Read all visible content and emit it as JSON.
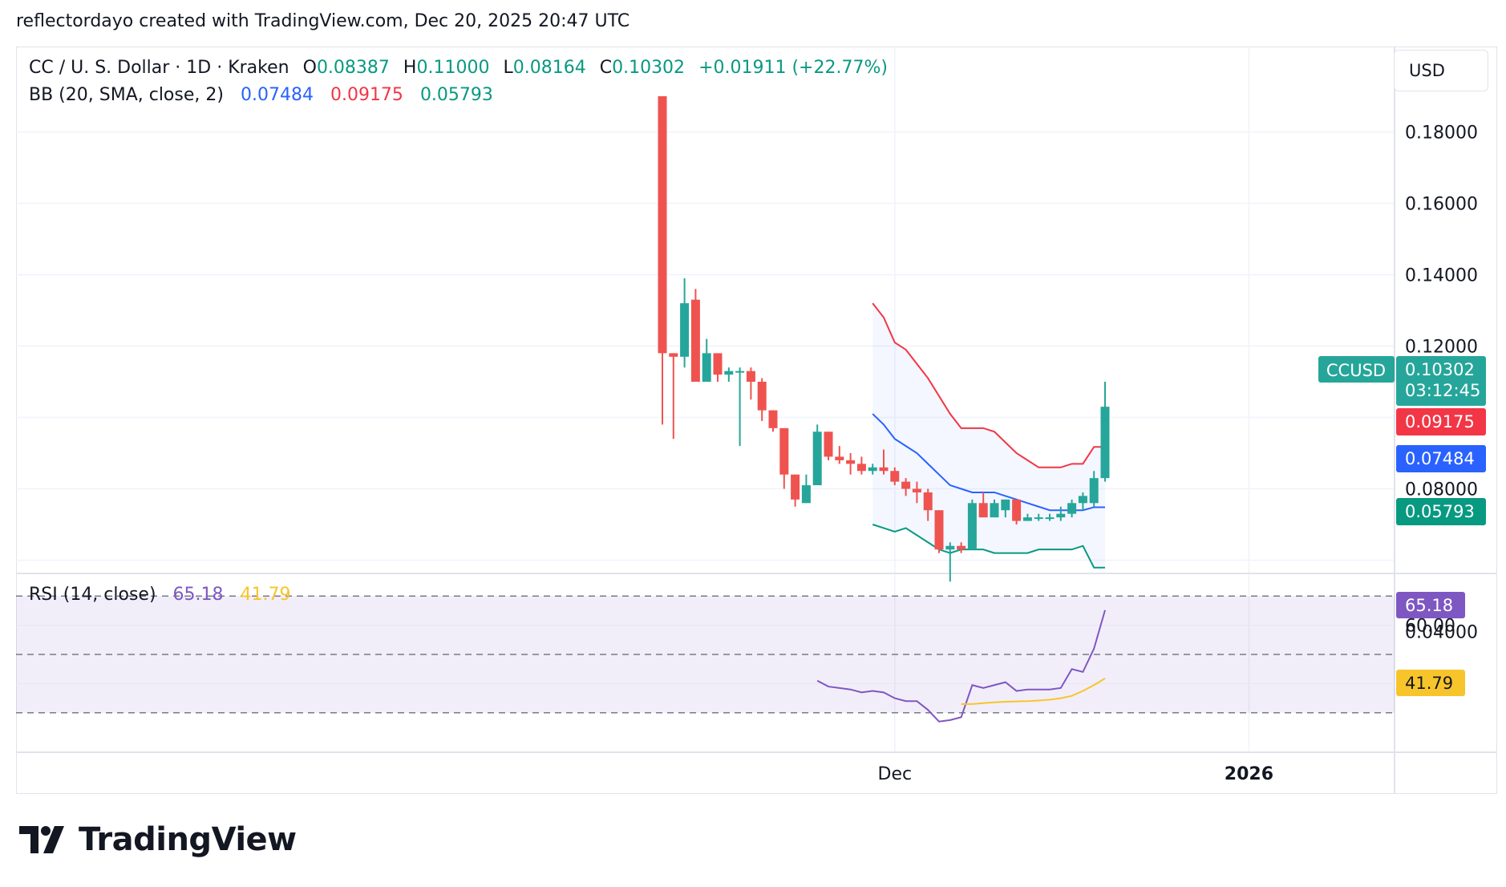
{
  "credit": "reflectordayo created with TradingView.com, Dec 20, 2025 20:47 UTC",
  "legend": {
    "symbol": "CC / U. S. Dollar · 1D · Kraken",
    "o_label": "O",
    "o_value": "0.08387",
    "h_label": "H",
    "h_value": "0.11000",
    "l_label": "L",
    "l_value": "0.08164",
    "c_label": "C",
    "c_value": "0.10302",
    "change": "+0.01911 (+22.77%)",
    "bb_label": "BB (20, SMA, close, 2)",
    "bb_basis": "0.07484",
    "bb_upper": "0.09175",
    "bb_lower": "0.05793",
    "rsi_label": "RSI (14, close)",
    "rsi_value": "65.18",
    "rsi_ma_value": "41.79"
  },
  "currency": "USD",
  "brand": "TradingView",
  "colors": {
    "up": "#26a69a",
    "down": "#ef5350",
    "bb_upper": "#f23645",
    "bb_basis": "#2962ff",
    "bb_lower": "#089981",
    "rsi": "#7e57c2",
    "rsi_ma": "#f7c52b",
    "price_badge": "#26a69a"
  },
  "chart_data": [
    {
      "type": "candlestick",
      "symbol": "CCUSD",
      "ylim": [
        0.04,
        0.19
      ],
      "y_ticks": [
        "0.18000",
        "0.16000",
        "0.14000",
        "0.12000",
        "0.08000",
        "0.04000"
      ],
      "x_ticks": [
        "Dec",
        "2026"
      ],
      "first_candle_index": 0,
      "dec_index": 21,
      "year_index": 53,
      "candles": [
        [
          0.19,
          0.19,
          0.098,
          0.118
        ],
        [
          0.118,
          0.118,
          0.094,
          0.117
        ],
        [
          0.117,
          0.139,
          0.114,
          0.132
        ],
        [
          0.133,
          0.136,
          0.11,
          0.11
        ],
        [
          0.11,
          0.122,
          0.11,
          0.118
        ],
        [
          0.118,
          0.118,
          0.11,
          0.112
        ],
        [
          0.112,
          0.114,
          0.11,
          0.113
        ],
        [
          0.113,
          0.114,
          0.092,
          0.113
        ],
        [
          0.113,
          0.114,
          0.105,
          0.11
        ],
        [
          0.11,
          0.111,
          0.099,
          0.102
        ],
        [
          0.102,
          0.102,
          0.096,
          0.097
        ],
        [
          0.097,
          0.097,
          0.08,
          0.084
        ],
        [
          0.084,
          0.084,
          0.075,
          0.077
        ],
        [
          0.076,
          0.084,
          0.076,
          0.081
        ],
        [
          0.081,
          0.098,
          0.081,
          0.096
        ],
        [
          0.096,
          0.096,
          0.088,
          0.089
        ],
        [
          0.089,
          0.092,
          0.087,
          0.088
        ],
        [
          0.088,
          0.09,
          0.084,
          0.087
        ],
        [
          0.087,
          0.089,
          0.084,
          0.085
        ],
        [
          0.085,
          0.087,
          0.084,
          0.086
        ],
        [
          0.086,
          0.091,
          0.084,
          0.085
        ],
        [
          0.085,
          0.086,
          0.081,
          0.082
        ],
        [
          0.082,
          0.083,
          0.078,
          0.08
        ],
        [
          0.08,
          0.082,
          0.076,
          0.079
        ],
        [
          0.079,
          0.08,
          0.071,
          0.074
        ],
        [
          0.074,
          0.074,
          0.062,
          0.063
        ],
        [
          0.063,
          0.065,
          0.054,
          0.064
        ],
        [
          0.064,
          0.065,
          0.062,
          0.063
        ],
        [
          0.063,
          0.077,
          0.063,
          0.076
        ],
        [
          0.076,
          0.079,
          0.072,
          0.072
        ],
        [
          0.072,
          0.077,
          0.072,
          0.076
        ],
        [
          0.074,
          0.077,
          0.072,
          0.077
        ],
        [
          0.077,
          0.077,
          0.07,
          0.071
        ],
        [
          0.071,
          0.073,
          0.071,
          0.072
        ],
        [
          0.072,
          0.073,
          0.071,
          0.072
        ],
        [
          0.072,
          0.073,
          0.071,
          0.072
        ],
        [
          0.072,
          0.075,
          0.071,
          0.073
        ],
        [
          0.073,
          0.077,
          0.072,
          0.076
        ],
        [
          0.076,
          0.079,
          0.074,
          0.078
        ],
        [
          0.076,
          0.085,
          0.075,
          0.083
        ],
        [
          0.083,
          0.11,
          0.082,
          0.103
        ]
      ],
      "bb_start_index": 19,
      "bb_upper": [
        0.132,
        0.128,
        0.121,
        0.119,
        0.115,
        0.111,
        0.106,
        0.101,
        0.097,
        0.097,
        0.097,
        0.096,
        0.093,
        0.09,
        0.088,
        0.086,
        0.086,
        0.086,
        0.087,
        0.087,
        0.09175,
        0.09175
      ],
      "bb_basis": [
        0.101,
        0.098,
        0.094,
        0.092,
        0.09,
        0.087,
        0.084,
        0.081,
        0.08,
        0.079,
        0.079,
        0.079,
        0.078,
        0.077,
        0.076,
        0.075,
        0.074,
        0.074,
        0.074,
        0.074,
        0.07484,
        0.07484
      ],
      "bb_lower": [
        0.07,
        0.069,
        0.068,
        0.069,
        0.067,
        0.065,
        0.063,
        0.062,
        0.063,
        0.063,
        0.063,
        0.062,
        0.062,
        0.062,
        0.062,
        0.063,
        0.063,
        0.063,
        0.063,
        0.064,
        0.05793,
        0.05793
      ],
      "price_badge": {
        "label": "CCUSD",
        "value": "0.10302",
        "countdown": "03:12:45"
      },
      "bb_badges": {
        "upper": "0.09175",
        "basis": "0.07484",
        "lower": "0.05793"
      }
    },
    {
      "type": "line",
      "name": "RSI (14, close)",
      "ylim": [
        25,
        72
      ],
      "bands": [
        70,
        50,
        30
      ],
      "y_ticks": [
        "60.00"
      ],
      "rsi_start_index": 14,
      "rsi": [
        41,
        39,
        38.5,
        38,
        37,
        37.5,
        37,
        35,
        34,
        34,
        31,
        27,
        27.5,
        28.5,
        39.5,
        38.5,
        39.5,
        40.5,
        37.5,
        38,
        38,
        38,
        38.5,
        45,
        44,
        52,
        65.18
      ],
      "rsi_ma_start_index": 27,
      "rsi_ma": [
        33,
        33,
        33.3,
        33.6,
        33.8,
        33.9,
        34,
        34.2,
        34.5,
        35,
        35.8,
        37.5,
        39.5,
        41.79
      ],
      "badges": {
        "rsi": "65.18",
        "rsi_ma": "41.79"
      }
    }
  ]
}
